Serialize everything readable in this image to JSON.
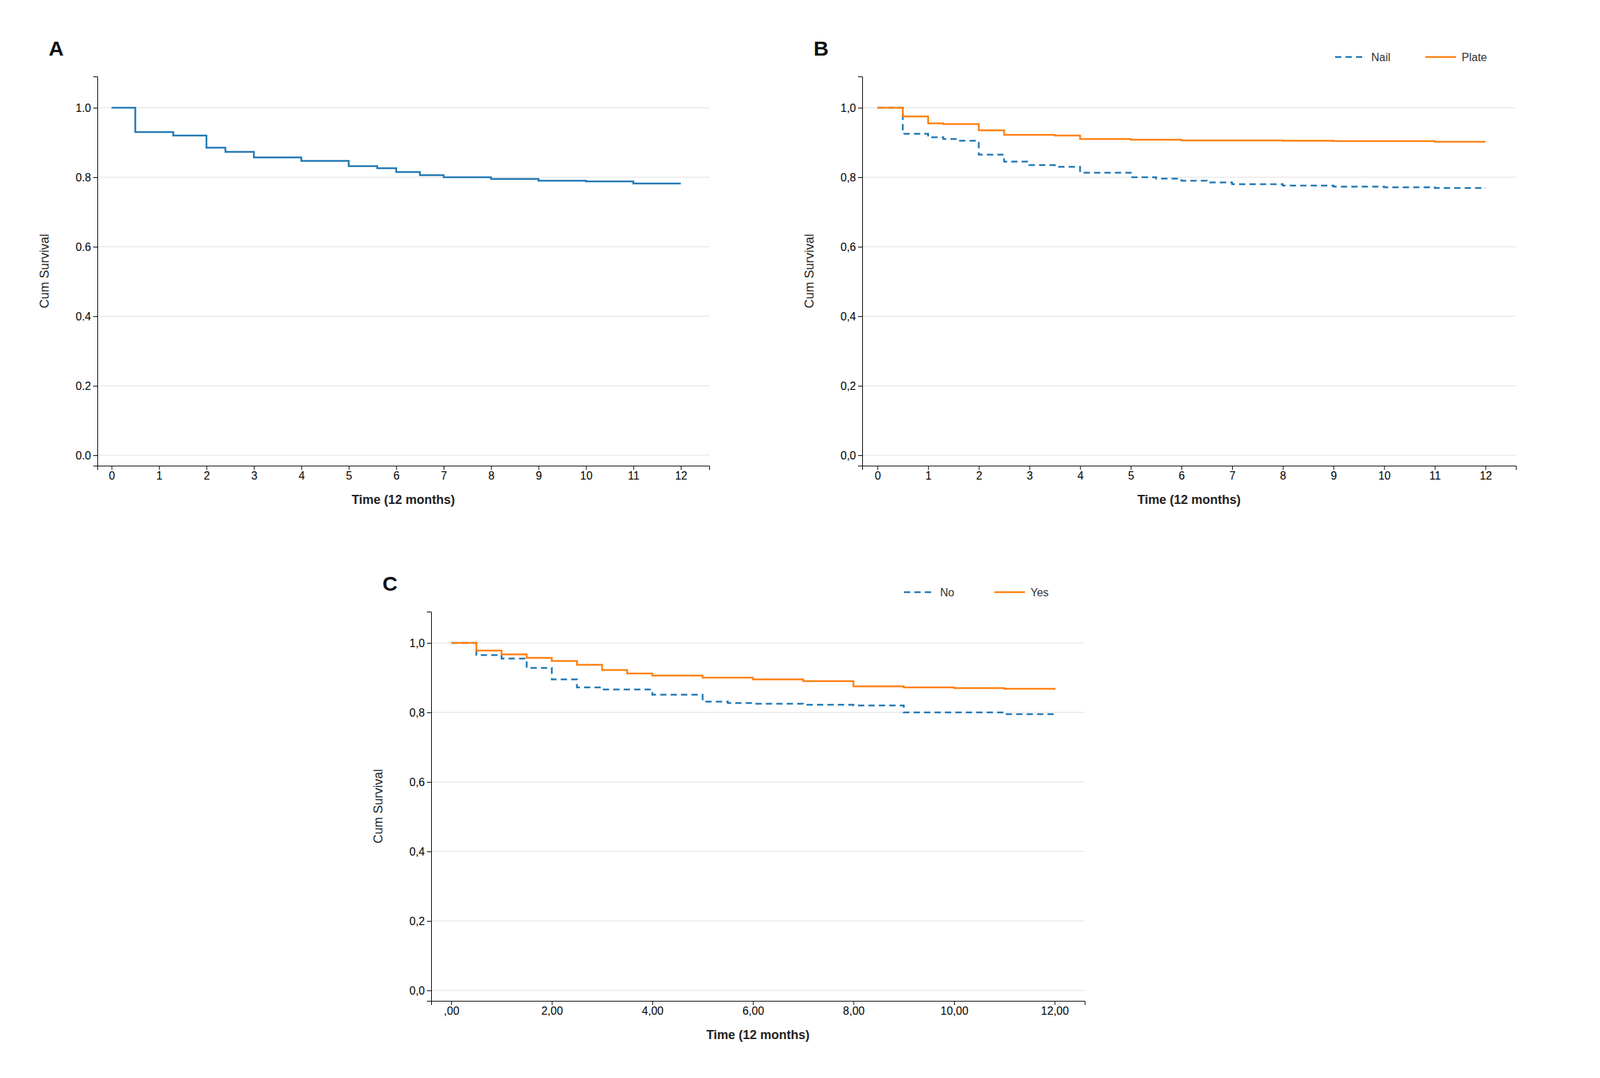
{
  "chart_data": [
    {
      "type": "step",
      "title": "A",
      "x_label": "Time (12 months)",
      "y_label": "Cum Survival",
      "series": [
        {
          "x": [
            0,
            0.15,
            0.5,
            1.0,
            1.3,
            1.6,
            2.0,
            2.4,
            2.9,
            3.0,
            3.6,
            4.0,
            4.6,
            5.0,
            5.6,
            6.0,
            6.5,
            7.0,
            8.0,
            9.0,
            10.0,
            11.0,
            12.0
          ],
          "values": [
            1.0,
            1.0,
            0.93,
            0.93,
            0.92,
            0.92,
            0.885,
            0.873,
            0.873,
            0.857,
            0.857,
            0.847,
            0.847,
            0.832,
            0.826,
            0.815,
            0.806,
            0.8,
            0.795,
            0.79,
            0.788,
            0.782,
            0.782
          ],
          "line_style": "solid"
        }
      ],
      "xlim": [
        -0.3,
        12.6
      ],
      "ylim": [
        -0.03,
        1.09
      ],
      "xticks": [
        0,
        1,
        2,
        3,
        4,
        5,
        6,
        7,
        8,
        9,
        10,
        11,
        12
      ],
      "yticks": [
        {
          "value": 0.0,
          "label": "0.0"
        },
        {
          "value": 0.2,
          "label": "0.2"
        },
        {
          "value": 0.4,
          "label": "0.4"
        },
        {
          "value": 0.6,
          "label": "0.6"
        },
        {
          "value": 0.8,
          "label": "0.8"
        },
        {
          "value": 1.0,
          "label": "1.0"
        }
      ],
      "grid": true
    },
    {
      "type": "step",
      "title": "B",
      "x_label": "Time (12 months)",
      "y_label": "Cum Survival",
      "series": [
        {
          "name": "Nail",
          "x": [
            0,
            0.15,
            0.5,
            1.0,
            1.3,
            1.6,
            2.0,
            2.5,
            3.0,
            3.5,
            4.0,
            5.0,
            5.5,
            6.0,
            6.5,
            7.0,
            8.0,
            9.0,
            10.0,
            11.0,
            12.0
          ],
          "values": [
            1.0,
            1.0,
            0.925,
            0.915,
            0.91,
            0.905,
            0.865,
            0.845,
            0.835,
            0.83,
            0.813,
            0.8,
            0.796,
            0.79,
            0.785,
            0.78,
            0.776,
            0.773,
            0.771,
            0.769,
            0.768
          ],
          "line_style": "dashed"
        },
        {
          "name": "Plate",
          "x": [
            0,
            0.15,
            0.5,
            1.0,
            1.3,
            2.0,
            2.5,
            3.5,
            4.0,
            4.5,
            5.0,
            6.0,
            7.0,
            8.0,
            9.0,
            10.0,
            11.0,
            12.0
          ],
          "values": [
            1.0,
            1.0,
            0.975,
            0.955,
            0.953,
            0.935,
            0.922,
            0.92,
            0.91,
            0.91,
            0.908,
            0.906,
            0.906,
            0.905,
            0.904,
            0.904,
            0.902,
            0.902
          ],
          "line_style": "solid"
        }
      ],
      "xlim": [
        -0.3,
        12.6
      ],
      "ylim": [
        -0.03,
        1.09
      ],
      "xticks": [
        0,
        1,
        2,
        3,
        4,
        5,
        6,
        7,
        8,
        9,
        10,
        11,
        12
      ],
      "yticks": [
        {
          "value": 0.0,
          "label": "0,0"
        },
        {
          "value": 0.2,
          "label": "0,2"
        },
        {
          "value": 0.4,
          "label": "0,4"
        },
        {
          "value": 0.6,
          "label": "0,6"
        },
        {
          "value": 0.8,
          "label": "0,8"
        },
        {
          "value": 1.0,
          "label": "1,0"
        }
      ],
      "grid": true,
      "legend": "upper right"
    },
    {
      "type": "step",
      "title": "C",
      "x_label": "Time (12 months)",
      "y_label": "Cum Survival",
      "series": [
        {
          "name": "No",
          "x": [
            0,
            0.15,
            0.5,
            1.0,
            1.5,
            2.0,
            2.5,
            3.0,
            4.0,
            5.0,
            5.5,
            6.0,
            7.0,
            8.0,
            9.0,
            10.0,
            11.0,
            12.0
          ],
          "values": [
            1.0,
            1.0,
            0.965,
            0.955,
            0.928,
            0.895,
            0.872,
            0.866,
            0.851,
            0.831,
            0.827,
            0.825,
            0.822,
            0.82,
            0.8,
            0.8,
            0.795,
            0.793
          ],
          "line_style": "dashed"
        },
        {
          "name": "Yes",
          "x": [
            0,
            0.1,
            0.5,
            1.0,
            1.5,
            2.0,
            2.5,
            3.0,
            3.5,
            4.0,
            5.0,
            5.5,
            6.0,
            7.0,
            8.0,
            9.0,
            10.0,
            11.0,
            12.0
          ],
          "values": [
            1.0,
            1.0,
            0.978,
            0.967,
            0.957,
            0.948,
            0.937,
            0.922,
            0.912,
            0.906,
            0.9,
            0.9,
            0.895,
            0.89,
            0.875,
            0.872,
            0.87,
            0.868,
            0.865
          ],
          "line_style": "solid"
        }
      ],
      "xlim": [
        -0.4,
        12.6
      ],
      "ylim": [
        -0.03,
        1.09
      ],
      "xticks": [
        {
          "value": 0.0,
          "label": ",00"
        },
        {
          "value": 2.0,
          "label": "2,00"
        },
        {
          "value": 4.0,
          "label": "4,00"
        },
        {
          "value": 6.0,
          "label": "6,00"
        },
        {
          "value": 8.0,
          "label": "8,00"
        },
        {
          "value": 10.0,
          "label": "10,00"
        },
        {
          "value": 12.0,
          "label": "12,00"
        }
      ],
      "yticks": [
        {
          "value": 0.0,
          "label": "0,0"
        },
        {
          "value": 0.2,
          "label": "0,2"
        },
        {
          "value": 0.4,
          "label": "0,4"
        },
        {
          "value": 0.6,
          "label": "0,6"
        },
        {
          "value": 0.8,
          "label": "0,8"
        },
        {
          "value": 1.0,
          "label": "1,0"
        }
      ],
      "grid": true,
      "legend": "upper right"
    }
  ]
}
